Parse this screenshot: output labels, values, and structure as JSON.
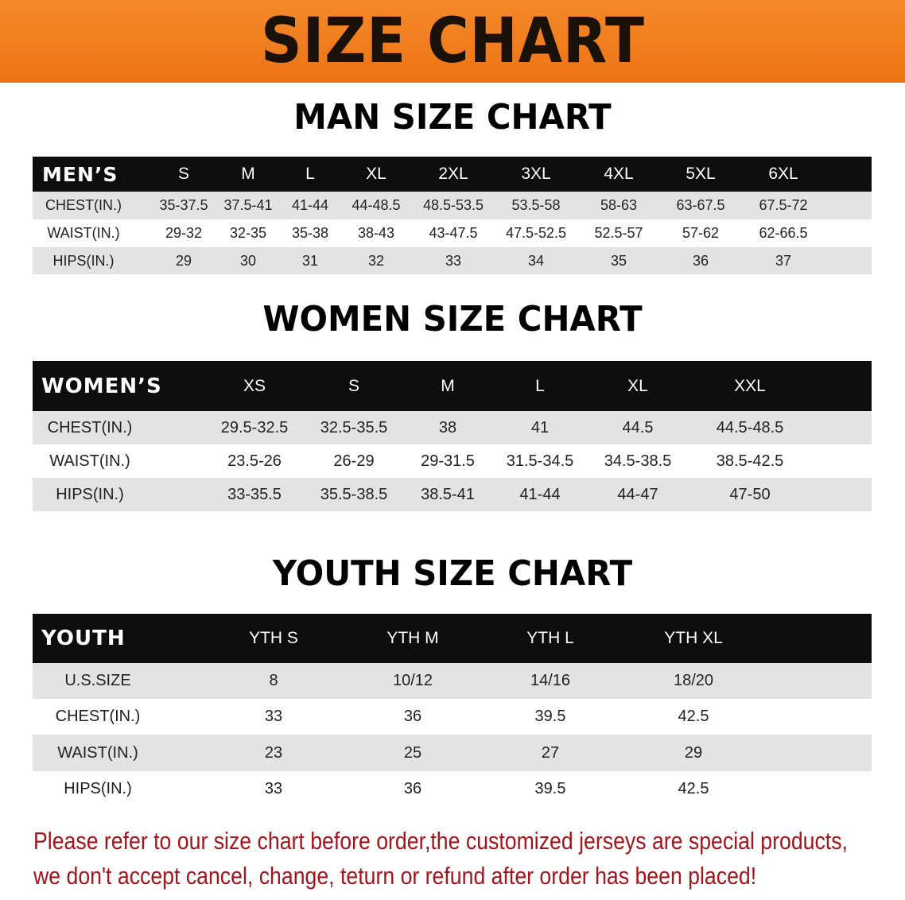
{
  "banner_title": "SIZE CHART",
  "colors": {
    "banner": "#ec7414",
    "header_row": "#0d0d0d",
    "striped_row": "#e3e3e3",
    "note_text": "#a3151b"
  },
  "men": {
    "title": "MAN SIZE CHART",
    "header": [
      "MEN’S",
      "S",
      "M",
      "L",
      "XL",
      "2XL",
      "3XL",
      "4XL",
      "5XL",
      "6XL"
    ],
    "rows": [
      [
        "CHEST(IN.)",
        "35-37.5",
        "37.5-41",
        "41-44",
        "44-48.5",
        "48.5-53.5",
        "53.5-58",
        "58-63",
        "63-67.5",
        "67.5-72"
      ],
      [
        "WAIST(IN.)",
        "29-32",
        "32-35",
        "35-38",
        "38-43",
        "43-47.5",
        "47.5-52.5",
        "52.5-57",
        "57-62",
        "62-66.5"
      ],
      [
        "HIPS(IN.)",
        "29",
        "30",
        "31",
        "32",
        "33",
        "34",
        "35",
        "36",
        "37"
      ]
    ]
  },
  "women": {
    "title": "WOMEN SIZE CHART",
    "header": [
      "WOMEN’S",
      "XS",
      "S",
      "M",
      "L",
      "XL",
      "XXL"
    ],
    "rows": [
      [
        "CHEST(IN.)",
        "29.5-32.5",
        "32.5-35.5",
        "38",
        "41",
        "44.5",
        "44.5-48.5"
      ],
      [
        "WAIST(IN.)",
        "23.5-26",
        "26-29",
        "29-31.5",
        "31.5-34.5",
        "34.5-38.5",
        "38.5-42.5"
      ],
      [
        "HIPS(IN.)",
        "33-35.5",
        "35.5-38.5",
        "38.5-41",
        "41-44",
        "44-47",
        "47-50"
      ]
    ]
  },
  "youth": {
    "title": "YOUTH SIZE CHART",
    "header": [
      "YOUTH",
      "YTH S",
      "YTH M",
      "YTH L",
      "YTH XL"
    ],
    "rows": [
      [
        "U.S.SIZE",
        "8",
        "10/12",
        "14/16",
        "18/20"
      ],
      [
        "CHEST(IN.)",
        "33",
        "36",
        "39.5",
        "42.5"
      ],
      [
        "WAIST(IN.)",
        "23",
        "25",
        "27",
        "29"
      ],
      [
        "HIPS(IN.)",
        "33",
        "36",
        "39.5",
        "42.5"
      ]
    ]
  },
  "note": {
    "line1": "Please refer to our size chart before order,the customized jerseys are special products,",
    "line2": "we don't accept cancel, change, teturn or refund after order has been placed!"
  }
}
